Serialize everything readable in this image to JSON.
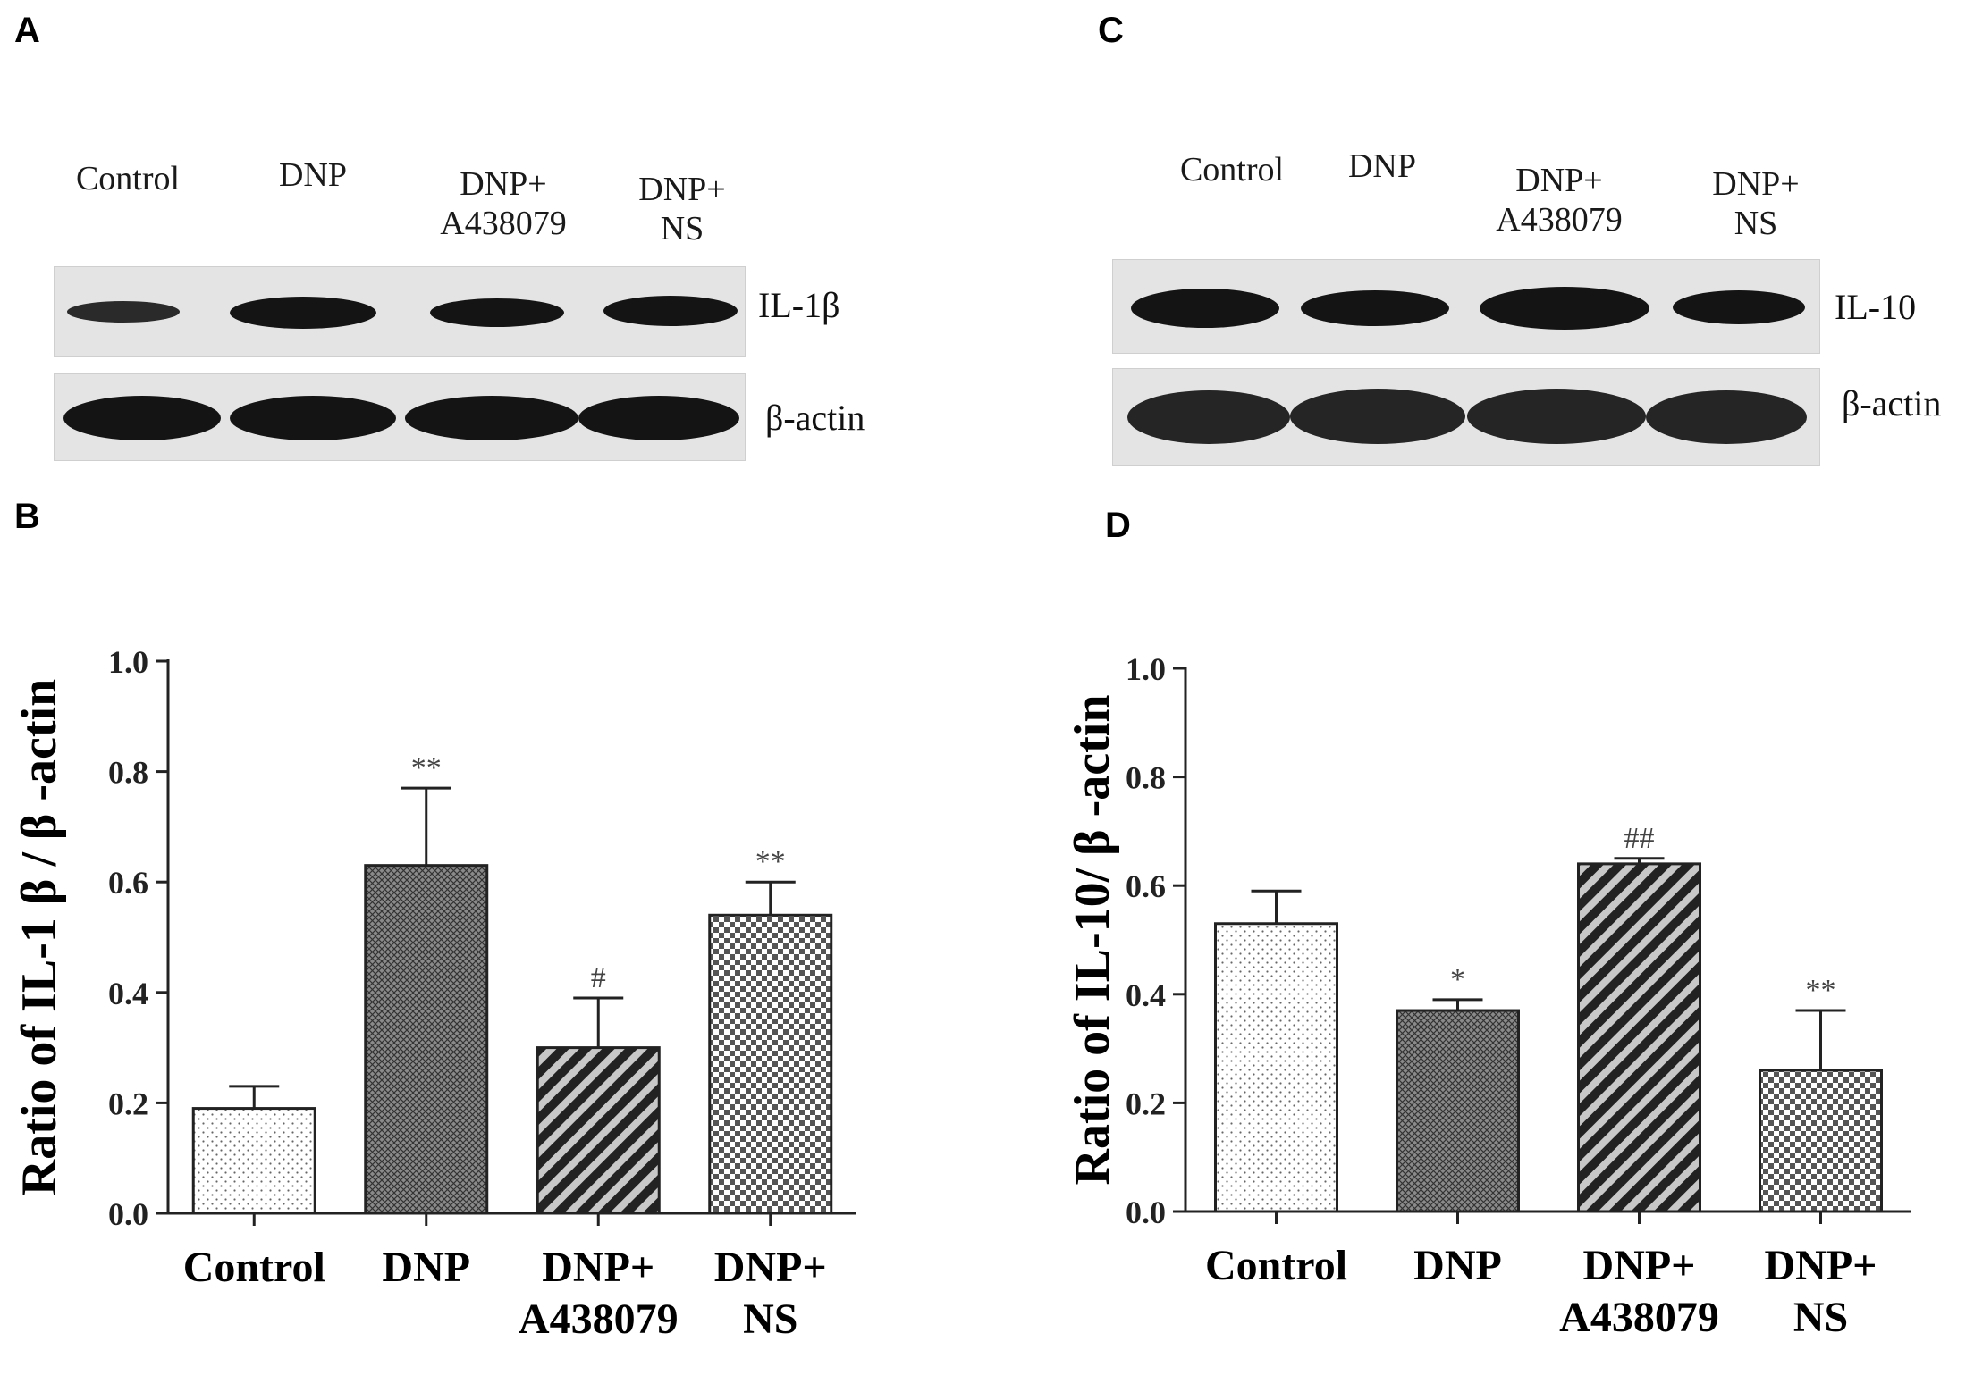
{
  "panels": {
    "A": "A",
    "B": "B",
    "C": "C",
    "D": "D"
  },
  "blot_A": {
    "lanes": [
      "Control",
      "DNP",
      "DNP+\nA438079",
      "DNP+\nNS"
    ],
    "proteins": [
      "IL-1β",
      "β-actin"
    ]
  },
  "blot_C": {
    "lanes": [
      "Control",
      "DNP",
      "DNP+\nA438079",
      "DNP+\nNS"
    ],
    "proteins": [
      "IL-10",
      "β-actin"
    ]
  },
  "chart_data": [
    {
      "type": "bar",
      "panel": "B",
      "categories": [
        "Control",
        "DNP",
        "DNP+\nA438079",
        "DNP+\nNS"
      ],
      "values": [
        0.19,
        0.63,
        0.3,
        0.54
      ],
      "errors": [
        0.04,
        0.14,
        0.09,
        0.06
      ],
      "annotations": [
        "",
        "**",
        "#",
        "**"
      ],
      "patterns": [
        "dots",
        "crosshatch-fine",
        "diagonal",
        "checker"
      ],
      "ylabel": "Ratio of IL-1 β / β -actin",
      "ylim": [
        0,
        1.0
      ],
      "yticks": [
        "0.0",
        "0.2",
        "0.4",
        "0.6",
        "0.8",
        "1.0"
      ]
    },
    {
      "type": "bar",
      "panel": "D",
      "categories": [
        "Control",
        "DNP",
        "DNP+\nA438079",
        "DNP+\nNS"
      ],
      "values": [
        0.53,
        0.37,
        0.64,
        0.26
      ],
      "errors": [
        0.06,
        0.02,
        0.01,
        0.11
      ],
      "annotations": [
        "",
        "*",
        "##",
        "**"
      ],
      "patterns": [
        "dots",
        "crosshatch-fine",
        "diagonal",
        "checker"
      ],
      "ylabel": "Ratio of IL-10/ β -actin",
      "ylim": [
        0,
        1.0
      ],
      "yticks": [
        "0.0",
        "0.2",
        "0.4",
        "0.6",
        "0.8",
        "1.0"
      ]
    }
  ]
}
